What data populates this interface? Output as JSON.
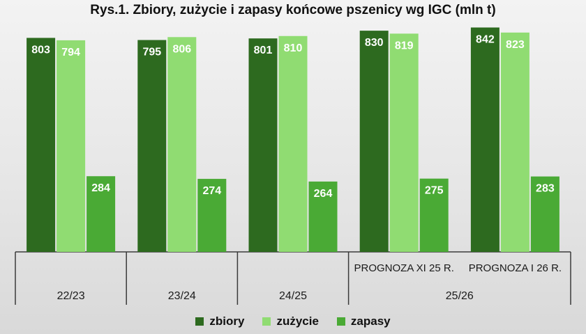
{
  "chart_data": {
    "type": "bar",
    "title": "Rys.1. Zbiory, zużycie i zapasy końcowe pszenicy wg IGC (mln t)",
    "groups": [
      {
        "category": "22/23",
        "sublabel": ""
      },
      {
        "category": "23/24",
        "sublabel": ""
      },
      {
        "category": "24/25",
        "sublabel": ""
      },
      {
        "category": "25/26",
        "sublabel": "PROGNOZA XI 25 R."
      },
      {
        "category": "25/26",
        "sublabel": "PROGNOZA I 26 R."
      }
    ],
    "outer_categories": [
      "22/23",
      "23/24",
      "24/25",
      "25/26"
    ],
    "series": [
      {
        "name": "zbiory",
        "color": "#2d6a1f",
        "values": [
          803,
          795,
          801,
          830,
          842
        ]
      },
      {
        "name": "zużycie",
        "color": "#90dc72",
        "values": [
          794,
          806,
          810,
          819,
          823
        ]
      },
      {
        "name": "zapasy",
        "color": "#4aaa35",
        "values": [
          284,
          274,
          264,
          275,
          283
        ]
      }
    ],
    "ylim": [
      0,
      850
    ],
    "grid": false,
    "legend_position": "bottom"
  }
}
